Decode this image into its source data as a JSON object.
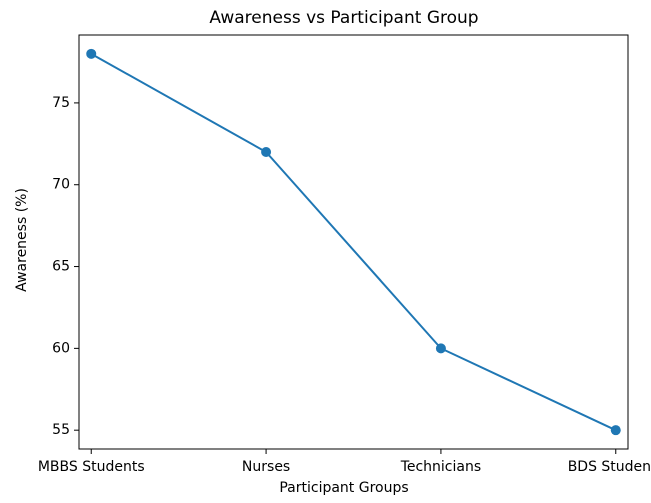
{
  "chart_data": {
    "type": "line",
    "title": "Awareness vs Participant Group",
    "xlabel": "Participant Groups",
    "ylabel": "Awareness (%)",
    "categories": [
      "MBBS Students",
      "Nurses",
      "Technicians",
      "BDS Students"
    ],
    "series": [
      {
        "name": "Awareness",
        "color": "#1f77b4",
        "values": [
          78,
          72,
          60,
          55
        ]
      }
    ],
    "ylim": [
      53.85,
      79.15
    ],
    "yticks": [
      55,
      60,
      65,
      70,
      75
    ],
    "grid": false
  }
}
